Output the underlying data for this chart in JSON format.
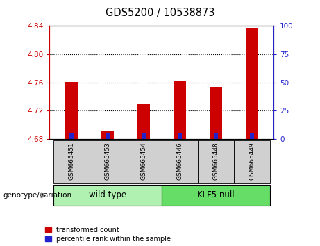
{
  "title": "GDS5200 / 10538873",
  "samples": [
    "GSM665451",
    "GSM665453",
    "GSM665454",
    "GSM665446",
    "GSM665448",
    "GSM665449"
  ],
  "red_values": [
    4.761,
    4.692,
    4.73,
    4.762,
    4.754,
    4.836
  ],
  "blue_values": [
    4.6875,
    4.6875,
    4.6875,
    4.6875,
    4.6875,
    4.6875
  ],
  "base": 4.68,
  "ylim_left": [
    4.68,
    4.84
  ],
  "ylim_right": [
    0,
    100
  ],
  "yticks_left": [
    4.68,
    4.72,
    4.76,
    4.8,
    4.84
  ],
  "yticks_right": [
    0,
    25,
    50,
    75,
    100
  ],
  "red_color": "#CC0000",
  "blue_color": "#2222CC",
  "bar_width": 0.35,
  "blue_bar_width": 0.12,
  "background_color": "#ffffff",
  "plot_bg": "#ffffff",
  "tick_color_left": "#CC0000",
  "tick_color_right": "#2222CC",
  "legend_labels": [
    "transformed count",
    "percentile rank within the sample"
  ],
  "wt_color": "#b0f0b0",
  "klf_color": "#66dd66",
  "sample_bg": "#d0d0d0"
}
